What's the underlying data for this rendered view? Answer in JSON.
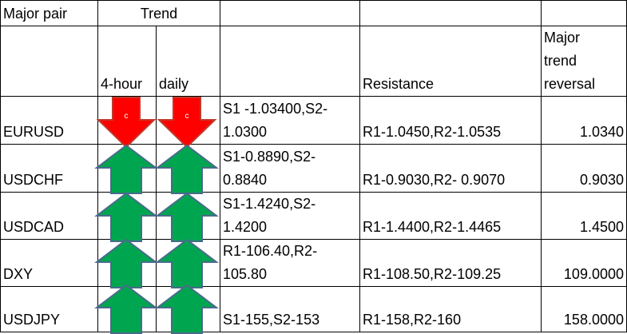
{
  "header": {
    "major_pair": "Major pair",
    "trend": "Trend",
    "four_hour": "4-hour",
    "daily": "daily",
    "resistance": "Resistance",
    "reversal": [
      "Major",
      "trend",
      "reversal"
    ]
  },
  "rows": [
    {
      "pair": "EURUSD",
      "trend_4h": {
        "direction": "down",
        "label": "c"
      },
      "trend_daily": {
        "direction": "down",
        "label": "c"
      },
      "support": [
        "S1 -1.03400,S2-",
        "1.0300"
      ],
      "resistance": "R1-1.0450,R2-1.0535",
      "reversal": "1.0340"
    },
    {
      "pair": "USDCHF",
      "trend_4h": {
        "direction": "up"
      },
      "trend_daily": {
        "direction": "up"
      },
      "support": [
        "S1-0.8890,S2-",
        "0.8840"
      ],
      "resistance": "R1-0.9030,R2- 0.9070",
      "reversal": "0.9030"
    },
    {
      "pair": "USDCAD",
      "trend_4h": {
        "direction": "up"
      },
      "trend_daily": {
        "direction": "up"
      },
      "support": [
        "S1-1.4240,S2-",
        "1.4200"
      ],
      "resistance": "R1-1.4400,R2-1.4465",
      "reversal": "1.4500"
    },
    {
      "pair": "DXY",
      "trend_4h": {
        "direction": "up"
      },
      "trend_daily": {
        "direction": "up"
      },
      "support": [
        "R1-106.40,R2-",
        "105.80"
      ],
      "resistance": "R1-108.50,R2-109.25",
      "reversal": "109.0000"
    },
    {
      "pair": "USDJPY",
      "trend_4h": {
        "direction": "up"
      },
      "trend_daily": {
        "direction": "up"
      },
      "support": [
        "S1-155,S2-153"
      ],
      "resistance": "R1-158,R2-160",
      "reversal": "158.0000"
    }
  ]
}
